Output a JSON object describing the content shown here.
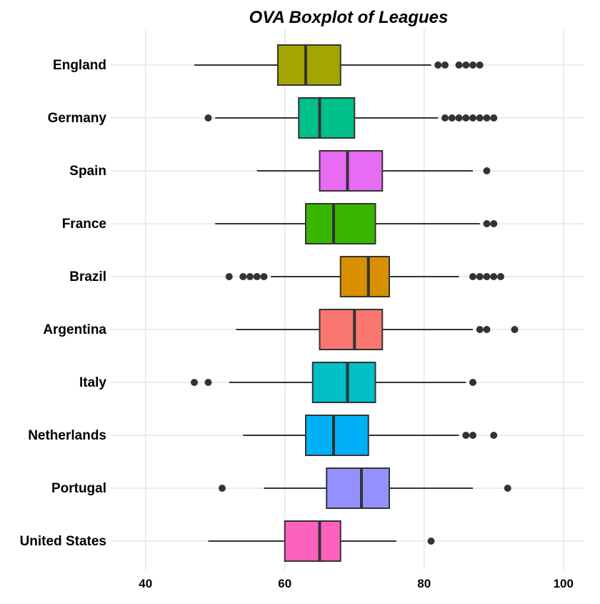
{
  "chart_data": {
    "type": "boxplot",
    "title": "OVA Boxplot of Leagues",
    "xlabel": "",
    "ylabel": "",
    "xlim": [
      35,
      103
    ],
    "x_ticks": [
      40,
      60,
      80,
      100
    ],
    "x_tick_labels": [
      "40",
      "60",
      "80",
      "100"
    ],
    "grid": true,
    "legend": "none",
    "series": [
      {
        "category": "England",
        "color": "#a3a500",
        "whisker_low": 47,
        "q1": 59,
        "median": 63,
        "q3": 68,
        "whisker_high": 81,
        "outliers": [
          82,
          83,
          85,
          86,
          87,
          88
        ]
      },
      {
        "category": "Germany",
        "color": "#00c08b",
        "whisker_low": 50,
        "q1": 62,
        "median": 65,
        "q3": 70,
        "whisker_high": 82,
        "outliers": [
          49,
          83,
          84,
          85,
          86,
          87,
          88,
          89,
          90
        ]
      },
      {
        "category": "Spain",
        "color": "#e76bf3",
        "whisker_low": 56,
        "q1": 65,
        "median": 69,
        "q3": 74,
        "whisker_high": 87,
        "outliers": [
          89
        ]
      },
      {
        "category": "France",
        "color": "#39b600",
        "whisker_low": 50,
        "q1": 63,
        "median": 67,
        "q3": 73,
        "whisker_high": 88,
        "outliers": [
          89,
          90
        ]
      },
      {
        "category": "Brazil",
        "color": "#d89000",
        "whisker_low": 58,
        "q1": 68,
        "median": 72,
        "q3": 75,
        "whisker_high": 85,
        "outliers": [
          52,
          54,
          55,
          56,
          57,
          87,
          88,
          89,
          90,
          91
        ]
      },
      {
        "category": "Argentina",
        "color": "#f8766d",
        "whisker_low": 53,
        "q1": 65,
        "median": 70,
        "q3": 74,
        "whisker_high": 87,
        "outliers": [
          88,
          89,
          93
        ]
      },
      {
        "category": "Italy",
        "color": "#00bfc4",
        "whisker_low": 52,
        "q1": 64,
        "median": 69,
        "q3": 73,
        "whisker_high": 86,
        "outliers": [
          47,
          49,
          87
        ]
      },
      {
        "category": "Netherlands",
        "color": "#00b0f6",
        "whisker_low": 54,
        "q1": 63,
        "median": 67,
        "q3": 72,
        "whisker_high": 85,
        "outliers": [
          86,
          87,
          90
        ]
      },
      {
        "category": "Portugal",
        "color": "#9590ff",
        "whisker_low": 57,
        "q1": 66,
        "median": 71,
        "q3": 75,
        "whisker_high": 87,
        "outliers": [
          51,
          92
        ]
      },
      {
        "category": "United States",
        "color": "#ff62bc",
        "whisker_low": 49,
        "q1": 60,
        "median": 65,
        "q3": 68,
        "whisker_high": 76,
        "outliers": [
          81
        ]
      }
    ]
  }
}
